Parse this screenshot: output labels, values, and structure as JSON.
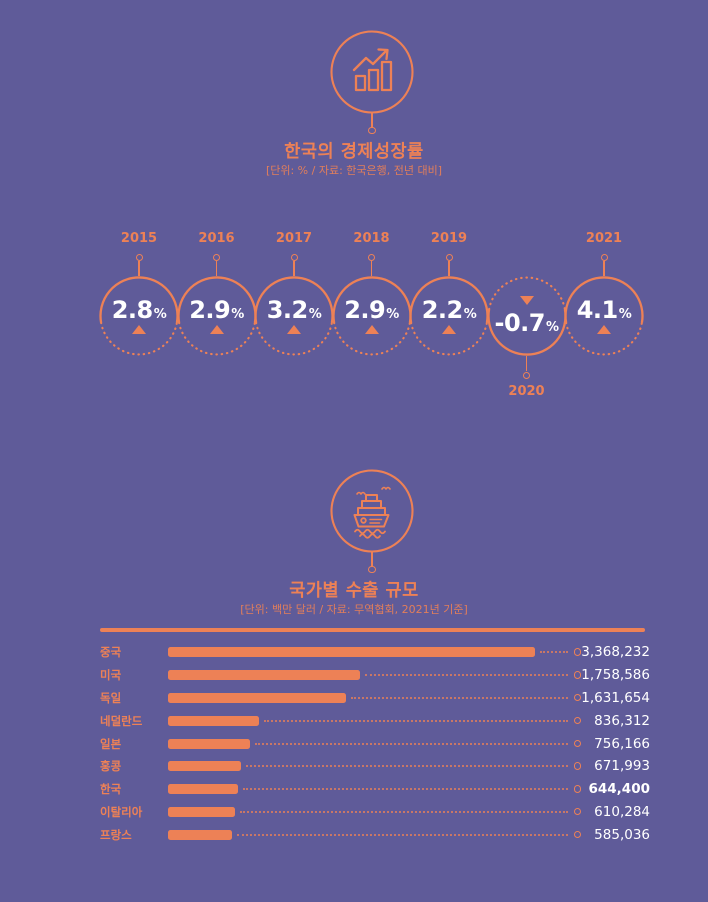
{
  "colors": {
    "background": "#5F5B99",
    "accent": "#ED8156",
    "value_text": "#FFFFFF"
  },
  "growth_section": {
    "icon": "growth-chart-icon",
    "title": "한국의 경제성장률",
    "subtitle": "[단위: % / 자료: 한국은행, 전년 대비]",
    "items": [
      {
        "year": "2015",
        "value": "2.8",
        "unit": "%",
        "direction": "up"
      },
      {
        "year": "2016",
        "value": "2.9",
        "unit": "%",
        "direction": "up"
      },
      {
        "year": "2017",
        "value": "3.2",
        "unit": "%",
        "direction": "up"
      },
      {
        "year": "2018",
        "value": "2.9",
        "unit": "%",
        "direction": "up"
      },
      {
        "year": "2019",
        "value": "2.2",
        "unit": "%",
        "direction": "up"
      },
      {
        "year": "2020",
        "value": "-0.7",
        "unit": "%",
        "direction": "down"
      },
      {
        "year": "2021",
        "value": "4.1",
        "unit": "%",
        "direction": "up"
      }
    ]
  },
  "export_section": {
    "icon": "cargo-ship-icon",
    "title": "국가별 수출 규모",
    "subtitle": "[단위: 백만 달러 / 자료: 무역협회, 2021년 기준]",
    "rows": [
      {
        "country": "중국",
        "value": "3,368,232",
        "highlight": false
      },
      {
        "country": "미국",
        "value": "1,758,586",
        "highlight": false
      },
      {
        "country": "독일",
        "value": "1,631,654",
        "highlight": false
      },
      {
        "country": "네덜란드",
        "value": "836,312",
        "highlight": false
      },
      {
        "country": "일본",
        "value": "756,166",
        "highlight": false
      },
      {
        "country": "홍콩",
        "value": "671,993",
        "highlight": false
      },
      {
        "country": "한국",
        "value": "644,400",
        "highlight": true
      },
      {
        "country": "이탈리아",
        "value": "610,284",
        "highlight": false
      },
      {
        "country": "프랑스",
        "value": "585,036",
        "highlight": false
      }
    ]
  },
  "chart_data": [
    {
      "type": "line",
      "title": "한국의 경제성장률",
      "unit": "%",
      "source": "한국은행, 전년 대비",
      "categories": [
        "2015",
        "2016",
        "2017",
        "2018",
        "2019",
        "2020",
        "2021"
      ],
      "values": [
        2.8,
        2.9,
        3.2,
        2.9,
        2.2,
        -0.7,
        4.1
      ],
      "annotations": "2020 shown inverted with down arrow (negative growth); all other years show up arrow"
    },
    {
      "type": "bar",
      "orientation": "horizontal",
      "title": "국가별 수출 규모",
      "unit": "백만 달러",
      "source": "무역협회, 2021년 기준",
      "categories": [
        "중국",
        "미국",
        "독일",
        "네덜란드",
        "일본",
        "홍콩",
        "한국",
        "이탈리아",
        "프랑스"
      ],
      "values": [
        3368232,
        1758586,
        1631654,
        836312,
        756166,
        671993,
        644400,
        610284,
        585036
      ],
      "highlight_category": "한국"
    }
  ]
}
